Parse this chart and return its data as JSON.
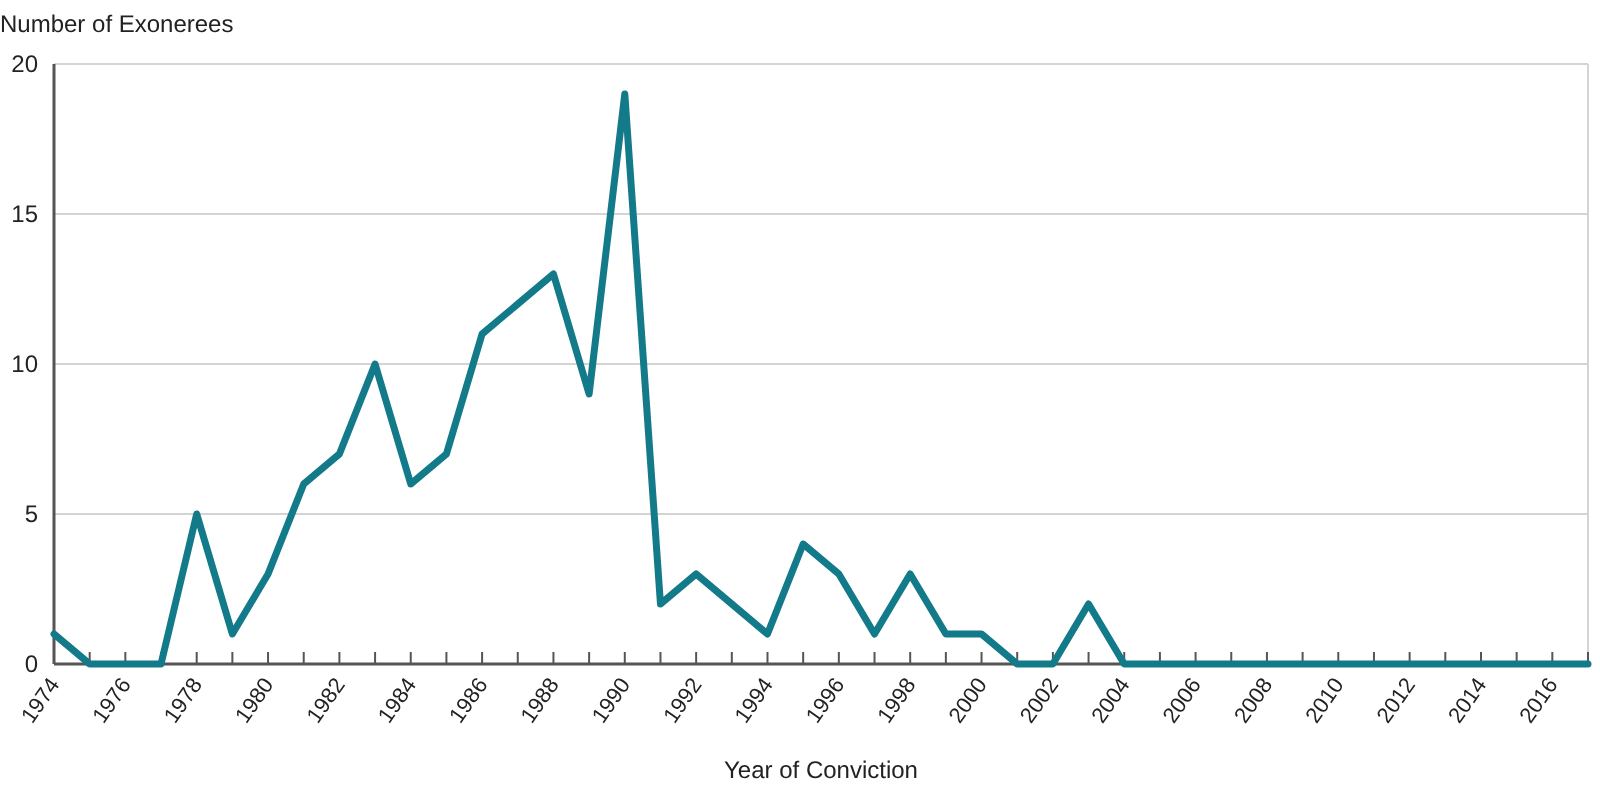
{
  "chart_data": {
    "type": "line",
    "ylabel": "Number of Exonerees",
    "xlabel": "Year of Conviction",
    "x": [
      1974,
      1975,
      1976,
      1977,
      1978,
      1979,
      1980,
      1981,
      1982,
      1983,
      1984,
      1985,
      1986,
      1987,
      1988,
      1989,
      1990,
      1991,
      1992,
      1993,
      1994,
      1995,
      1996,
      1997,
      1998,
      1999,
      2000,
      2001,
      2002,
      2003,
      2004,
      2005,
      2006,
      2007,
      2008,
      2009,
      2010,
      2011,
      2012,
      2013,
      2014,
      2015,
      2016,
      2017
    ],
    "series": [
      {
        "color": "#137a8a",
        "values": [
          1,
          0,
          0,
          0,
          5,
          1,
          3,
          6,
          7,
          10,
          6,
          7,
          11,
          12,
          13,
          9,
          19,
          2,
          3,
          2,
          1,
          4,
          3,
          1,
          3,
          1,
          1,
          0,
          0,
          2,
          0,
          0,
          0,
          0,
          0,
          0,
          0,
          0,
          0,
          0,
          0,
          0,
          0,
          0
        ]
      }
    ],
    "xlim": [
      1974,
      2017
    ],
    "xticks": [
      1974,
      {
        "value": 1975,
        "label": null
      },
      1976,
      {
        "value": 1977,
        "label": null
      },
      1978,
      {
        "value": 1979,
        "label": null
      },
      1980,
      {
        "value": 1981,
        "label": null
      },
      1982,
      {
        "value": 1983,
        "label": null
      },
      1984,
      {
        "value": 1985,
        "label": null
      },
      1986,
      {
        "value": 1987,
        "label": null
      },
      1988,
      {
        "value": 1989,
        "label": null
      },
      1990,
      {
        "value": 1991,
        "label": null
      },
      1992,
      {
        "value": 1993,
        "label": null
      },
      1994,
      {
        "value": 1995,
        "label": null
      },
      1996,
      {
        "value": 1997,
        "label": null
      },
      1998,
      {
        "value": 1999,
        "label": null
      },
      2000,
      {
        "value": 2001,
        "label": null
      },
      2002,
      {
        "value": 2003,
        "label": null
      },
      2004,
      {
        "value": 2005,
        "label": null
      },
      2006,
      {
        "value": 2007,
        "label": null
      },
      2008,
      {
        "value": 2009,
        "label": null
      },
      2010,
      {
        "value": 2011,
        "label": null
      },
      2012,
      {
        "value": 2013,
        "label": null
      },
      2014,
      {
        "value": 2015,
        "label": null
      },
      2016,
      {
        "value": 2017,
        "label": null
      }
    ],
    "ylim": [
      0,
      20
    ],
    "yticks": [
      0,
      5,
      10,
      15,
      20
    ],
    "grid": "y",
    "marker": "none",
    "line_style": "solid"
  }
}
